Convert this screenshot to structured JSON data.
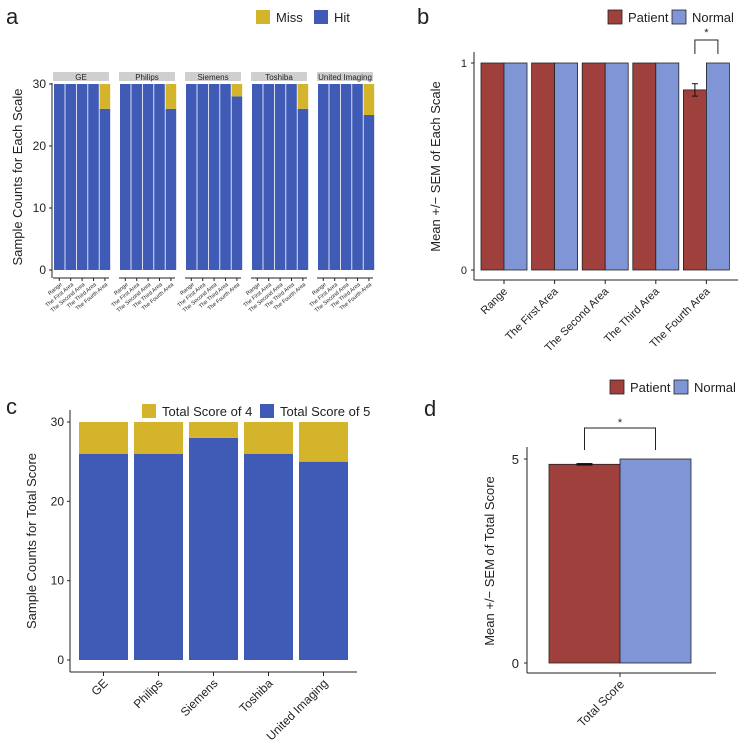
{
  "colors": {
    "hit": "#3f5bb5",
    "miss": "#d4b42a",
    "patient": "#a0403c",
    "normal": "#7f95d6",
    "strip": "#cfcfcf"
  },
  "chart_data": [
    {
      "panel": "a",
      "type": "bar",
      "stacked": true,
      "facets": [
        "GE",
        "Philips",
        "Siemens",
        "Toshiba",
        "United Imaging"
      ],
      "categories": [
        "Range",
        "The First Area",
        "The Second Area",
        "The Third Area",
        "The Fourth Area"
      ],
      "legend": [
        "Miss",
        "Hit"
      ],
      "legend_position": "top-right",
      "ylabel": "Sample Counts for Each Scale",
      "ylim": [
        0,
        31
      ],
      "yticks": [
        0,
        10,
        20,
        30
      ],
      "series": [
        {
          "name": "Hit",
          "values": [
            [
              30,
              30,
              30,
              30,
              26
            ],
            [
              30,
              30,
              30,
              30,
              26
            ],
            [
              30,
              30,
              30,
              30,
              28
            ],
            [
              30,
              30,
              30,
              30,
              26
            ],
            [
              30,
              30,
              30,
              30,
              25
            ]
          ]
        },
        {
          "name": "Miss",
          "values": [
            [
              0,
              0,
              0,
              0,
              4
            ],
            [
              0,
              0,
              0,
              0,
              4
            ],
            [
              0,
              0,
              0,
              0,
              2
            ],
            [
              0,
              0,
              0,
              0,
              4
            ],
            [
              0,
              0,
              0,
              0,
              5
            ]
          ]
        }
      ]
    },
    {
      "panel": "b",
      "type": "bar",
      "categories": [
        "Range",
        "The First Area",
        "The Second Area",
        "The Third Area",
        "The Fourth Area"
      ],
      "legend": [
        "Patient",
        "Normal"
      ],
      "legend_position": "top-right",
      "ylabel": "Mean +/− SEM of Each Scale",
      "ylim": [
        0,
        1.03
      ],
      "yticks": [
        0,
        1
      ],
      "series": [
        {
          "name": "Patient",
          "values": [
            1,
            1,
            1,
            1,
            0.87
          ],
          "sem": [
            0,
            0,
            0,
            0,
            0.03
          ]
        },
        {
          "name": "Normal",
          "values": [
            1,
            1,
            1,
            1,
            1
          ],
          "sem": [
            0,
            0,
            0,
            0,
            0
          ]
        }
      ],
      "annotations": [
        {
          "category": "The Fourth Area",
          "text": "*"
        }
      ]
    },
    {
      "panel": "c",
      "type": "bar",
      "stacked": true,
      "categories": [
        "GE",
        "Philips",
        "Siemens",
        "Toshiba",
        "United Imaging"
      ],
      "legend": [
        "Total Score of 4",
        "Total Score of 5"
      ],
      "legend_position": "top-right",
      "ylabel": "Sample Counts for Total Score",
      "ylim": [
        0,
        31
      ],
      "yticks": [
        0,
        10,
        20,
        30
      ],
      "series": [
        {
          "name": "Total Score of 5",
          "values": [
            26,
            26,
            28,
            26,
            25
          ]
        },
        {
          "name": "Total Score of 4",
          "values": [
            4,
            4,
            2,
            4,
            5
          ]
        }
      ]
    },
    {
      "panel": "d",
      "type": "bar",
      "categories": [
        "Total Score"
      ],
      "legend": [
        "Patient",
        "Normal"
      ],
      "legend_position": "top-right",
      "ylabel": "Mean +/− SEM of Total Score",
      "ylim": [
        0,
        5.15
      ],
      "yticks": [
        0,
        5
      ],
      "series": [
        {
          "name": "Patient",
          "values": [
            4.87
          ],
          "sem": [
            0.03
          ]
        },
        {
          "name": "Normal",
          "values": [
            5
          ],
          "sem": [
            0
          ]
        }
      ],
      "annotations": [
        {
          "category": "Total Score",
          "text": "*"
        }
      ]
    }
  ]
}
